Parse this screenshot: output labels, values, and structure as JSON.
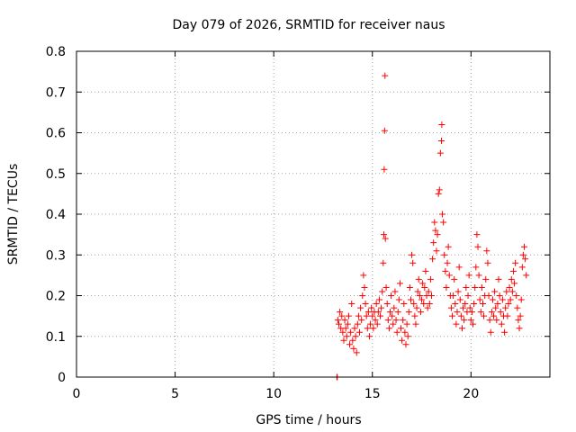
{
  "chart_data": {
    "type": "scatter",
    "title": "Day 079 of 2026, SRMTID for receiver naus",
    "xlabel": "GPS time / hours",
    "ylabel": "SRMTID / TECUs",
    "xlim": [
      0,
      24
    ],
    "ylim": [
      0,
      0.8
    ],
    "xticks": [
      0,
      5,
      10,
      15,
      20
    ],
    "xtick_labels": [
      "0",
      "5",
      "10",
      "15",
      "20"
    ],
    "yticks": [
      0,
      0.1,
      0.2,
      0.3,
      0.4,
      0.5,
      0.6,
      0.7,
      0.8
    ],
    "ytick_labels": [
      "0",
      "0.1",
      "0.2",
      "0.3",
      "0.4",
      "0.5",
      "0.6",
      "0.7",
      "0.8"
    ],
    "grid": true,
    "marker": "+",
    "color": "#ff0000",
    "series": [
      {
        "name": "SRMTID",
        "points": [
          [
            13.2,
            0.0
          ],
          [
            13.22,
            0.0
          ],
          [
            13.25,
            0.14
          ],
          [
            13.3,
            0.13
          ],
          [
            13.35,
            0.16
          ],
          [
            13.4,
            0.12
          ],
          [
            13.45,
            0.15
          ],
          [
            13.5,
            0.11
          ],
          [
            13.55,
            0.09
          ],
          [
            13.6,
            0.14
          ],
          [
            13.65,
            0.12
          ],
          [
            13.7,
            0.1
          ],
          [
            13.75,
            0.13
          ],
          [
            13.8,
            0.15
          ],
          [
            13.85,
            0.08
          ],
          [
            13.9,
            0.11
          ],
          [
            13.95,
            0.18
          ],
          [
            14.0,
            0.09
          ],
          [
            14.05,
            0.07
          ],
          [
            14.1,
            0.12
          ],
          [
            14.15,
            0.1
          ],
          [
            14.2,
            0.06
          ],
          [
            14.25,
            0.13
          ],
          [
            14.3,
            0.15
          ],
          [
            14.35,
            0.11
          ],
          [
            14.4,
            0.17
          ],
          [
            14.45,
            0.14
          ],
          [
            14.5,
            0.2
          ],
          [
            14.55,
            0.25
          ],
          [
            14.6,
            0.22
          ],
          [
            14.65,
            0.18
          ],
          [
            14.7,
            0.15
          ],
          [
            14.75,
            0.12
          ],
          [
            14.8,
            0.16
          ],
          [
            14.85,
            0.1
          ],
          [
            14.9,
            0.13
          ],
          [
            14.95,
            0.17
          ],
          [
            15.0,
            0.15
          ],
          [
            15.05,
            0.12
          ],
          [
            15.1,
            0.16
          ],
          [
            15.15,
            0.14
          ],
          [
            15.2,
            0.18
          ],
          [
            15.25,
            0.13
          ],
          [
            15.3,
            0.16
          ],
          [
            15.35,
            0.19
          ],
          [
            15.4,
            0.15
          ],
          [
            15.45,
            0.17
          ],
          [
            15.5,
            0.21
          ],
          [
            15.55,
            0.28
          ],
          [
            15.58,
            0.35
          ],
          [
            15.6,
            0.51
          ],
          [
            15.62,
            0.605
          ],
          [
            15.64,
            0.74
          ],
          [
            15.66,
            0.34
          ],
          [
            15.7,
            0.22
          ],
          [
            15.75,
            0.18
          ],
          [
            15.8,
            0.14
          ],
          [
            15.85,
            0.12
          ],
          [
            15.9,
            0.16
          ],
          [
            15.95,
            0.2
          ],
          [
            16.0,
            0.15
          ],
          [
            16.05,
            0.13
          ],
          [
            16.1,
            0.17
          ],
          [
            16.15,
            0.21
          ],
          [
            16.2,
            0.14
          ],
          [
            16.25,
            0.11
          ],
          [
            16.3,
            0.16
          ],
          [
            16.35,
            0.19
          ],
          [
            16.4,
            0.23
          ],
          [
            16.45,
            0.12
          ],
          [
            16.5,
            0.09
          ],
          [
            16.55,
            0.14
          ],
          [
            16.6,
            0.18
          ],
          [
            16.65,
            0.11
          ],
          [
            16.7,
            0.08
          ],
          [
            16.75,
            0.13
          ],
          [
            16.8,
            0.1
          ],
          [
            16.85,
            0.16
          ],
          [
            16.9,
            0.22
          ],
          [
            16.95,
            0.19
          ],
          [
            17.0,
            0.3
          ],
          [
            17.05,
            0.28
          ],
          [
            17.1,
            0.18
          ],
          [
            17.15,
            0.15
          ],
          [
            17.2,
            0.13
          ],
          [
            17.25,
            0.17
          ],
          [
            17.3,
            0.21
          ],
          [
            17.35,
            0.24
          ],
          [
            17.4,
            0.2
          ],
          [
            17.45,
            0.16
          ],
          [
            17.5,
            0.19
          ],
          [
            17.55,
            0.23
          ],
          [
            17.6,
            0.18
          ],
          [
            17.65,
            0.22
          ],
          [
            17.7,
            0.26
          ],
          [
            17.75,
            0.2
          ],
          [
            17.8,
            0.17
          ],
          [
            17.85,
            0.21
          ],
          [
            17.9,
            0.18
          ],
          [
            17.95,
            0.24
          ],
          [
            18.0,
            0.2
          ],
          [
            18.05,
            0.29
          ],
          [
            18.1,
            0.33
          ],
          [
            18.15,
            0.38
          ],
          [
            18.2,
            0.36
          ],
          [
            18.25,
            0.31
          ],
          [
            18.3,
            0.35
          ],
          [
            18.35,
            0.45
          ],
          [
            18.4,
            0.46
          ],
          [
            18.45,
            0.55
          ],
          [
            18.5,
            0.58
          ],
          [
            18.52,
            0.62
          ],
          [
            18.55,
            0.4
          ],
          [
            18.6,
            0.38
          ],
          [
            18.65,
            0.3
          ],
          [
            18.7,
            0.26
          ],
          [
            18.75,
            0.22
          ],
          [
            18.8,
            0.28
          ],
          [
            18.85,
            0.32
          ],
          [
            18.9,
            0.25
          ],
          [
            18.95,
            0.2
          ],
          [
            19.0,
            0.17
          ],
          [
            19.05,
            0.15
          ],
          [
            19.1,
            0.2
          ],
          [
            19.15,
            0.24
          ],
          [
            19.2,
            0.18
          ],
          [
            19.25,
            0.13
          ],
          [
            19.3,
            0.16
          ],
          [
            19.35,
            0.21
          ],
          [
            19.4,
            0.27
          ],
          [
            19.45,
            0.19
          ],
          [
            19.5,
            0.15
          ],
          [
            19.55,
            0.12
          ],
          [
            19.6,
            0.17
          ],
          [
            19.65,
            0.14
          ],
          [
            19.7,
            0.18
          ],
          [
            19.75,
            0.22
          ],
          [
            19.8,
            0.16
          ],
          [
            19.85,
            0.2
          ],
          [
            19.9,
            0.25
          ],
          [
            19.95,
            0.17
          ],
          [
            20.0,
            0.14
          ],
          [
            20.05,
            0.16
          ],
          [
            20.1,
            0.13
          ],
          [
            20.15,
            0.18
          ],
          [
            20.2,
            0.22
          ],
          [
            20.25,
            0.27
          ],
          [
            20.3,
            0.35
          ],
          [
            20.35,
            0.32
          ],
          [
            20.4,
            0.25
          ],
          [
            20.45,
            0.19
          ],
          [
            20.5,
            0.16
          ],
          [
            20.55,
            0.22
          ],
          [
            20.6,
            0.18
          ],
          [
            20.65,
            0.15
          ],
          [
            20.7,
            0.2
          ],
          [
            20.75,
            0.24
          ],
          [
            20.8,
            0.31
          ],
          [
            20.85,
            0.28
          ],
          [
            20.9,
            0.2
          ],
          [
            20.95,
            0.14
          ],
          [
            21.0,
            0.11
          ],
          [
            21.05,
            0.16
          ],
          [
            21.1,
            0.19
          ],
          [
            21.15,
            0.15
          ],
          [
            21.2,
            0.21
          ],
          [
            21.25,
            0.17
          ],
          [
            21.3,
            0.14
          ],
          [
            21.35,
            0.18
          ],
          [
            21.4,
            0.24
          ],
          [
            21.45,
            0.2
          ],
          [
            21.5,
            0.16
          ],
          [
            21.55,
            0.13
          ],
          [
            21.6,
            0.19
          ],
          [
            21.65,
            0.15
          ],
          [
            21.7,
            0.11
          ],
          [
            21.75,
            0.17
          ],
          [
            21.8,
            0.21
          ],
          [
            21.85,
            0.15
          ],
          [
            21.9,
            0.18
          ],
          [
            21.95,
            0.22
          ],
          [
            22.0,
            0.19
          ],
          [
            22.05,
            0.24
          ],
          [
            22.1,
            0.21
          ],
          [
            22.15,
            0.26
          ],
          [
            22.2,
            0.23
          ],
          [
            22.25,
            0.28
          ],
          [
            22.3,
            0.2
          ],
          [
            22.35,
            0.17
          ],
          [
            22.4,
            0.14
          ],
          [
            22.45,
            0.12
          ],
          [
            22.5,
            0.15
          ],
          [
            22.55,
            0.19
          ],
          [
            22.6,
            0.27
          ],
          [
            22.65,
            0.3
          ],
          [
            22.7,
            0.32
          ],
          [
            22.75,
            0.29
          ],
          [
            22.8,
            0.25
          ]
        ]
      }
    ]
  }
}
